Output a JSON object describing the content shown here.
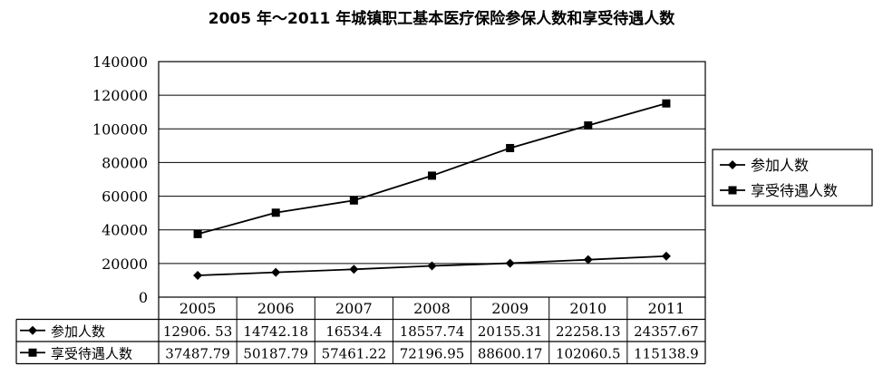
{
  "title": "2005 年～2011 年城镇职工基本医疗保险参保人数和享受待遇人数",
  "chart_data": {
    "type": "line",
    "title": "2005 年～2011 年城镇职工基本医疗保险参保人数和享受待遇人数",
    "categories": [
      "2005",
      "2006",
      "2007",
      "2008",
      "2009",
      "2010",
      "2011"
    ],
    "yticks": [
      "0",
      "20000",
      "40000",
      "60000",
      "80000",
      "100000",
      "120000",
      "140000"
    ],
    "ylim": [
      0,
      140000
    ],
    "grid": "horizontal",
    "legend_position": "right",
    "series": [
      {
        "name": "参加人数",
        "marker": "diamond",
        "values": [
          12906.53,
          14742.18,
          16534.4,
          18557.74,
          20155.31,
          22258.13,
          24357.67
        ],
        "labels": [
          "12906. 53",
          "14742.18",
          "16534.4",
          "18557.74",
          "20155.31",
          "22258.13",
          "24357.67"
        ]
      },
      {
        "name": "享受待遇人数",
        "marker": "square",
        "values": [
          37487.79,
          50187.79,
          57461.22,
          72196.95,
          88600.17,
          102060.5,
          115138.9
        ],
        "labels": [
          "37487.79",
          "50187.79",
          "57461.22",
          "72196.95",
          "88600.17",
          "102060.5",
          "115138.9"
        ]
      }
    ],
    "colors": {
      "line": "#000000",
      "grid": "#000000",
      "background": "#ffffff"
    }
  }
}
